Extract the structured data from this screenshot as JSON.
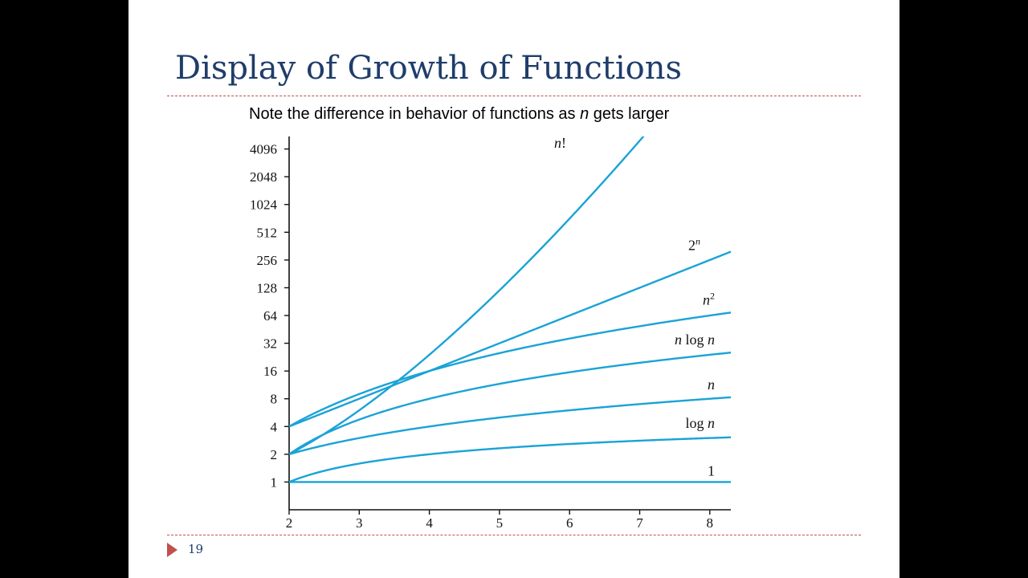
{
  "slide": {
    "title": "Display of Growth of Functions",
    "subtitle_prefix": "Note the difference in behavior of functions as ",
    "subtitle_var": "n",
    "subtitle_suffix": " gets larger",
    "number": "19",
    "colors": {
      "title": "#1f3d6b",
      "rule": "#c0504d",
      "curve": "#1aa3d6"
    }
  },
  "chart_data": {
    "type": "line",
    "x_ticks": [
      2,
      3,
      4,
      5,
      6,
      7,
      8
    ],
    "y_ticks": [
      1,
      2,
      4,
      8,
      16,
      32,
      64,
      128,
      256,
      512,
      1024,
      2048,
      4096
    ],
    "yscale": "log2",
    "xlim": [
      2,
      8.3
    ],
    "ylim": [
      0.5,
      5600
    ],
    "grid": false,
    "series": [
      {
        "name": "1",
        "fn": "one",
        "label_parts": [
          {
            "t": "1",
            "i": false
          }
        ]
      },
      {
        "name": "log n",
        "fn": "log",
        "label_parts": [
          {
            "t": "log ",
            "i": false
          },
          {
            "t": "n",
            "i": true
          }
        ]
      },
      {
        "name": "n",
        "fn": "n",
        "label_parts": [
          {
            "t": "n",
            "i": true
          }
        ]
      },
      {
        "name": "n log n",
        "fn": "nlogn",
        "label_parts": [
          {
            "t": "n",
            "i": true
          },
          {
            "t": " log ",
            "i": false
          },
          {
            "t": "n",
            "i": true
          }
        ]
      },
      {
        "name": "n2",
        "fn": "n2",
        "label_parts": [
          {
            "t": "n",
            "i": true
          },
          {
            "t": "2",
            "i": false,
            "sup": true
          }
        ]
      },
      {
        "name": "2n",
        "fn": "pow2",
        "label_parts": [
          {
            "t": "2",
            "i": false
          },
          {
            "t": "n",
            "i": true,
            "sup": true
          }
        ]
      },
      {
        "name": "n!",
        "fn": "fact",
        "label_parts": [
          {
            "t": "n",
            "i": true
          },
          {
            "t": "!",
            "i": false
          }
        ]
      }
    ]
  }
}
